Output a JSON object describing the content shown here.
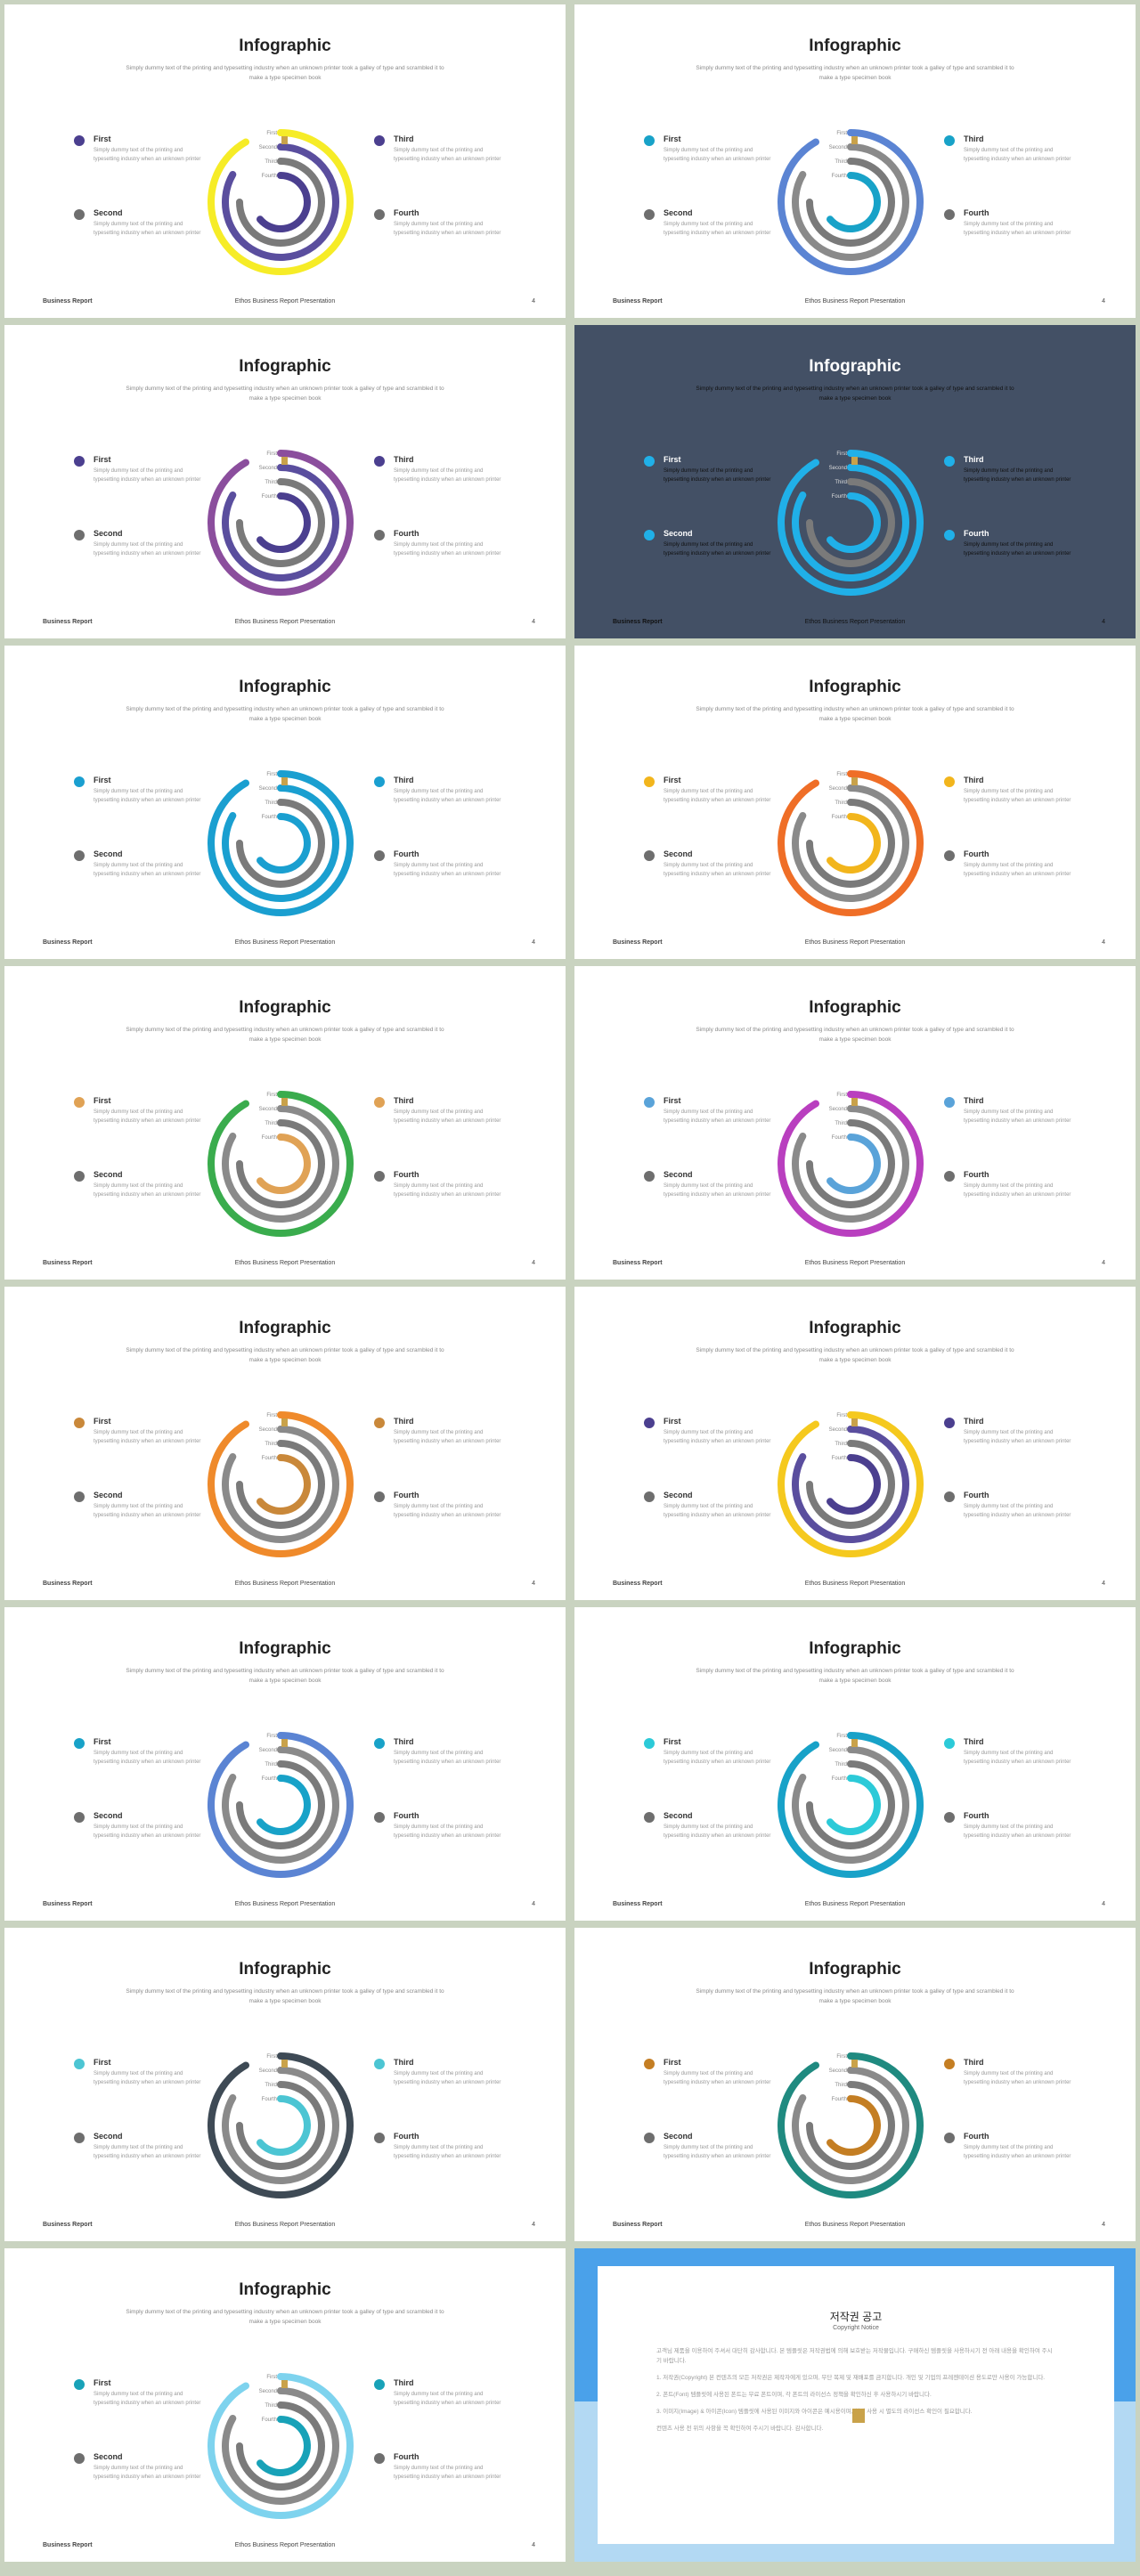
{
  "common": {
    "title": "Infographic",
    "subtitle": "Simply dummy text of the printing and typesetting industry when an unknown printer took a galley of type and scrambled it to make a type specimen book",
    "items": [
      {
        "title": "First",
        "text": "Simply dummy text of the printing and typesetting industry when an unknown printer"
      },
      {
        "title": "Second",
        "text": "Simply dummy text of the printing and typesetting industry when an unknown printer"
      },
      {
        "title": "Third",
        "text": "Simply dummy text of the printing and typesetting industry when an unknown printer"
      },
      {
        "title": "Fourth",
        "text": "Simply dummy text of the printing and typesetting industry when an unknown printer"
      }
    ],
    "ring_labels": [
      "First",
      "Second",
      "Third",
      "Fourth"
    ],
    "footer_left": "Business Report",
    "footer_mid": "Ethos Business Report Presentation",
    "footer_right": "4"
  },
  "slides": [
    {
      "colors": [
        "#4b3f8f",
        "#4b3f8f",
        "#5a4e9e",
        "#f6ec27"
      ],
      "dots": [
        "#4b3f8f",
        "#6e6e6e",
        "#4b3f8f",
        "#6e6e6e"
      ],
      "dark": false
    },
    {
      "colors": [
        "#18a2c8",
        "#18a2c8",
        "#8a8a8a",
        "#5b84d3"
      ],
      "dots": [
        "#18a2c8",
        "#6e6e6e",
        "#18a2c8",
        "#6e6e6e"
      ],
      "dark": false
    },
    {
      "colors": [
        "#4b3f8f",
        "#4b3f8f",
        "#5a4e9e",
        "#8b4e9d"
      ],
      "dots": [
        "#4b3f8f",
        "#6e6e6e",
        "#4b3f8f",
        "#6e6e6e"
      ],
      "dark": false
    },
    {
      "colors": [
        "#20b0e8",
        "#20b0e8",
        "#20b0e8",
        "#20b0e8"
      ],
      "dots": [
        "#20b0e8",
        "#20b0e8",
        "#20b0e8",
        "#20b0e8"
      ],
      "dark": true
    },
    {
      "colors": [
        "#1a9fd0",
        "#8a8a8a",
        "#1a9fd0",
        "#1a9fd0"
      ],
      "dots": [
        "#1a9fd0",
        "#6e6e6e",
        "#1a9fd0",
        "#6e6e6e"
      ],
      "dark": false
    },
    {
      "colors": [
        "#f2b51c",
        "#f2b51c",
        "#8a8a8a",
        "#ef6e27"
      ],
      "dots": [
        "#f2b51c",
        "#6e6e6e",
        "#f2b51c",
        "#6e6e6e"
      ],
      "dark": false
    },
    {
      "colors": [
        "#e0a255",
        "#e0a255",
        "#8a8a8a",
        "#3aac4d"
      ],
      "dots": [
        "#e0a255",
        "#6e6e6e",
        "#e0a255",
        "#6e6e6e"
      ],
      "dark": false
    },
    {
      "colors": [
        "#5aa3d9",
        "#5aa3d9",
        "#8a8a8a",
        "#b93fbf"
      ],
      "dots": [
        "#5aa3d9",
        "#6e6e6e",
        "#5aa3d9",
        "#6e6e6e"
      ],
      "dark": false
    },
    {
      "colors": [
        "#c9883a",
        "#c9883a",
        "#8a8a8a",
        "#ef8a2b"
      ],
      "dots": [
        "#c9883a",
        "#6e6e6e",
        "#c9883a",
        "#6e6e6e"
      ],
      "dark": false
    },
    {
      "colors": [
        "#4b3f8f",
        "#4b3f8f",
        "#5a4e9e",
        "#f5c91e"
      ],
      "dots": [
        "#4b3f8f",
        "#6e6e6e",
        "#4b3f8f",
        "#6e6e6e"
      ],
      "dark": false
    },
    {
      "colors": [
        "#18a2c8",
        "#18a2c8",
        "#8a8a8a",
        "#5b84d3"
      ],
      "dots": [
        "#18a2c8",
        "#6e6e6e",
        "#18a2c8",
        "#6e6e6e"
      ],
      "dark": false
    },
    {
      "colors": [
        "#2ccad8",
        "#2ccad8",
        "#8a8a8a",
        "#18a2c8"
      ],
      "dots": [
        "#2ccad8",
        "#6e6e6e",
        "#2ccad8",
        "#6e6e6e"
      ],
      "dark": false
    },
    {
      "colors": [
        "#4cc5d3",
        "#4cc5d3",
        "#8a8a8a",
        "#3e4a55"
      ],
      "dots": [
        "#4cc5d3",
        "#6e6e6e",
        "#4cc5d3",
        "#6e6e6e"
      ],
      "dark": false
    },
    {
      "colors": [
        "#c47e23",
        "#c47e23",
        "#8a8a8a",
        "#1f8a80"
      ],
      "dots": [
        "#c47e23",
        "#6e6e6e",
        "#c47e23",
        "#6e6e6e"
      ],
      "dark": false
    },
    {
      "colors": [
        "#18a2b8",
        "#18a2b8",
        "#8a8a8a",
        "#7ed3ee"
      ],
      "dots": [
        "#18a2b8",
        "#6e6e6e",
        "#18a2b8",
        "#6e6e6e"
      ],
      "dark": false
    }
  ],
  "copyright": {
    "title": "저작권 공고",
    "subtitle": "Copyright Notice",
    "paragraphs": [
      "고객님 제품을 이용하여 주셔서 대단히 감사합니다. 본 템플릿은 저작권법에 의해 보호받는 저작물입니다. 구매하신 템플릿을 사용하시기 전 아래 내용을 확인하여 주시기 바랍니다.",
      "1. 저작권(Copyright) 본 컨텐츠의 모든 저작권은 제작자에게 있으며, 무단 복제 및 재배포를 금지합니다. 개인 및 기업의 프레젠테이션 용도로만 사용이 가능합니다.",
      "2. 폰트(Font) 템플릿에 사용된 폰트는 무료 폰트이며, 각 폰트의 라이선스 정책을 확인하신 후 사용하시기 바랍니다.",
      "3. 이미지(Image) & 아이콘(Icon) 템플릿에 사용된 이미지와 아이콘은 예시용이며, 실제 사용 시 별도의 라이선스 확인이 필요합니다.",
      "컨텐츠 사용 전 위의 사항을 꼭 확인하여 주시기 바랍니다. 감사합니다."
    ]
  }
}
